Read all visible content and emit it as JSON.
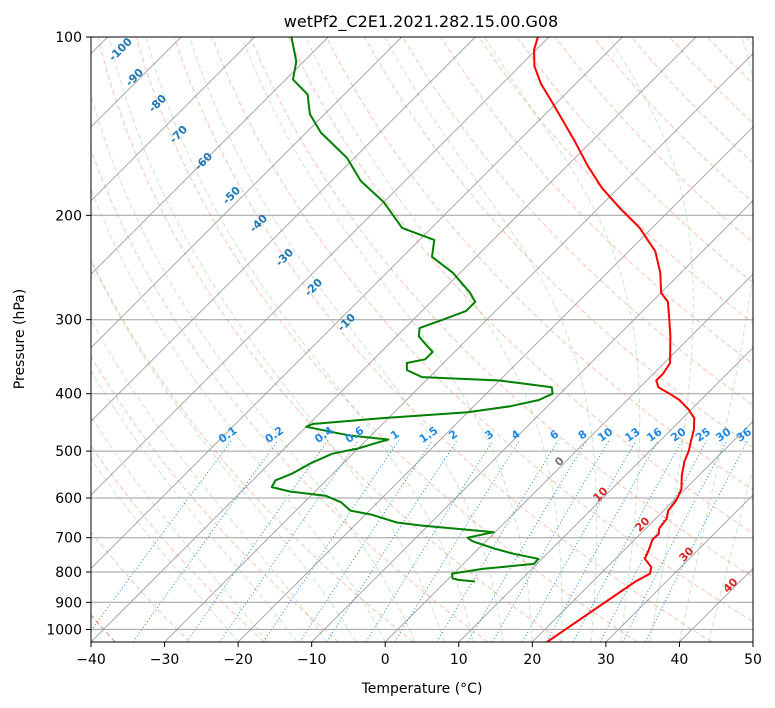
{
  "chart_data": {
    "type": "line",
    "title": "wetPf2_C2E1.2021.282.15.00.G08",
    "xlabel": "Temperature (°C)",
    "ylabel": "Pressure (hPa)",
    "xlim": [
      -40,
      50
    ],
    "ylim": [
      1050,
      100
    ],
    "y_scale": "log",
    "grid": true,
    "x_ticks": [
      -40,
      -30,
      -20,
      -10,
      0,
      10,
      20,
      30,
      40,
      50
    ],
    "x_tick_labels": [
      "−40",
      "−30",
      "−20",
      "−10",
      "0",
      "10",
      "20",
      "30",
      "40",
      "50"
    ],
    "y_ticks": [
      100,
      200,
      300,
      400,
      500,
      600,
      700,
      800,
      900,
      1000
    ],
    "y_tick_labels": [
      "100",
      "200",
      "300",
      "400",
      "500",
      "600",
      "700",
      "800",
      "900",
      "1000"
    ],
    "skew_deg": 45,
    "series": [
      {
        "color": "#ff0000",
        "points": [
          [
            1050,
            22
          ],
          [
            830,
            25.8
          ],
          [
            805,
            26.7
          ],
          [
            785,
            26
          ],
          [
            760,
            24
          ],
          [
            730,
            23.2
          ],
          [
            705,
            22.4
          ],
          [
            690,
            22.5
          ],
          [
            675,
            21.8
          ],
          [
            650,
            21.5
          ],
          [
            630,
            20.6
          ],
          [
            605,
            20.3
          ],
          [
            580,
            19.5
          ],
          [
            550,
            17.7
          ],
          [
            520,
            16.1
          ],
          [
            500,
            15.3
          ],
          [
            480,
            14.2
          ],
          [
            460,
            13.1
          ],
          [
            440,
            11.6
          ],
          [
            425,
            9.6
          ],
          [
            410,
            7.1
          ],
          [
            400,
            4.9
          ],
          [
            390,
            2.5
          ],
          [
            380,
            1.3
          ],
          [
            370,
            1.3
          ],
          [
            355,
            0.8
          ],
          [
            340,
            -0.7
          ],
          [
            320,
            -2.8
          ],
          [
            300,
            -5.2
          ],
          [
            280,
            -7.8
          ],
          [
            270,
            -10
          ],
          [
            250,
            -12.8
          ],
          [
            230,
            -16.4
          ],
          [
            210,
            -21.7
          ],
          [
            195,
            -26.9
          ],
          [
            180,
            -32.2
          ],
          [
            165,
            -37.2
          ],
          [
            150,
            -42.3
          ],
          [
            140,
            -46.1
          ],
          [
            130,
            -50.2
          ],
          [
            120,
            -54.7
          ],
          [
            112,
            -58
          ],
          [
            105,
            -60.3
          ],
          [
            100,
            -61.5
          ]
        ]
      },
      {
        "color": "#008000",
        "points": [
          [
            830,
            4
          ],
          [
            825,
            1.5
          ],
          [
            820,
            0.5
          ],
          [
            805,
            -0.2
          ],
          [
            790,
            3.4
          ],
          [
            775,
            9.6
          ],
          [
            760,
            9.5
          ],
          [
            745,
            5.4
          ],
          [
            730,
            2.1
          ],
          [
            710,
            -1.8
          ],
          [
            700,
            -3
          ],
          [
            685,
            -0.2
          ],
          [
            668,
            -10.8
          ],
          [
            660,
            -14.7
          ],
          [
            640,
            -19.2
          ],
          [
            630,
            -22.6
          ],
          [
            610,
            -25
          ],
          [
            595,
            -27.9
          ],
          [
            585,
            -33.4
          ],
          [
            575,
            -36.5
          ],
          [
            560,
            -36.9
          ],
          [
            545,
            -35.5
          ],
          [
            525,
            -34.5
          ],
          [
            505,
            -32.8
          ],
          [
            495,
            -30
          ],
          [
            485,
            -28.4
          ],
          [
            478,
            -27.1
          ],
          [
            470,
            -33.2
          ],
          [
            455,
            -40
          ],
          [
            450,
            -39.5
          ],
          [
            440,
            -31
          ],
          [
            430,
            -20
          ],
          [
            420,
            -15
          ],
          [
            410,
            -12
          ],
          [
            400,
            -11
          ],
          [
            390,
            -12
          ],
          [
            380,
            -20
          ],
          [
            375,
            -31
          ],
          [
            365,
            -34
          ],
          [
            355,
            -35
          ],
          [
            350,
            -33
          ],
          [
            340,
            -33
          ],
          [
            330,
            -35
          ],
          [
            320,
            -37
          ],
          [
            310,
            -38
          ],
          [
            300,
            -36
          ],
          [
            290,
            -34
          ],
          [
            280,
            -34
          ],
          [
            270,
            -36
          ],
          [
            250,
            -41
          ],
          [
            235,
            -46
          ],
          [
            220,
            -48
          ],
          [
            210,
            -54
          ],
          [
            190,
            -60
          ],
          [
            175,
            -66
          ],
          [
            160,
            -71
          ],
          [
            145,
            -78
          ],
          [
            135,
            -82
          ],
          [
            125,
            -85
          ],
          [
            118,
            -89
          ],
          [
            110,
            -91
          ],
          [
            100,
            -95
          ]
        ]
      }
    ],
    "dry_adiabat_labels": [
      "-100",
      "-90",
      "-80",
      "-70",
      "-60",
      "-50",
      "-40",
      "-30",
      "-20",
      "-10",
      "0",
      "10",
      "20",
      "30",
      "40"
    ],
    "mixing_ratio_labels": [
      "0.1",
      "0.2",
      "0.4",
      "0.6",
      "1",
      "1.5",
      "2",
      "3",
      "4",
      "6",
      "8",
      "10",
      "13",
      "16",
      "20",
      "25",
      "30",
      "36"
    ]
  }
}
